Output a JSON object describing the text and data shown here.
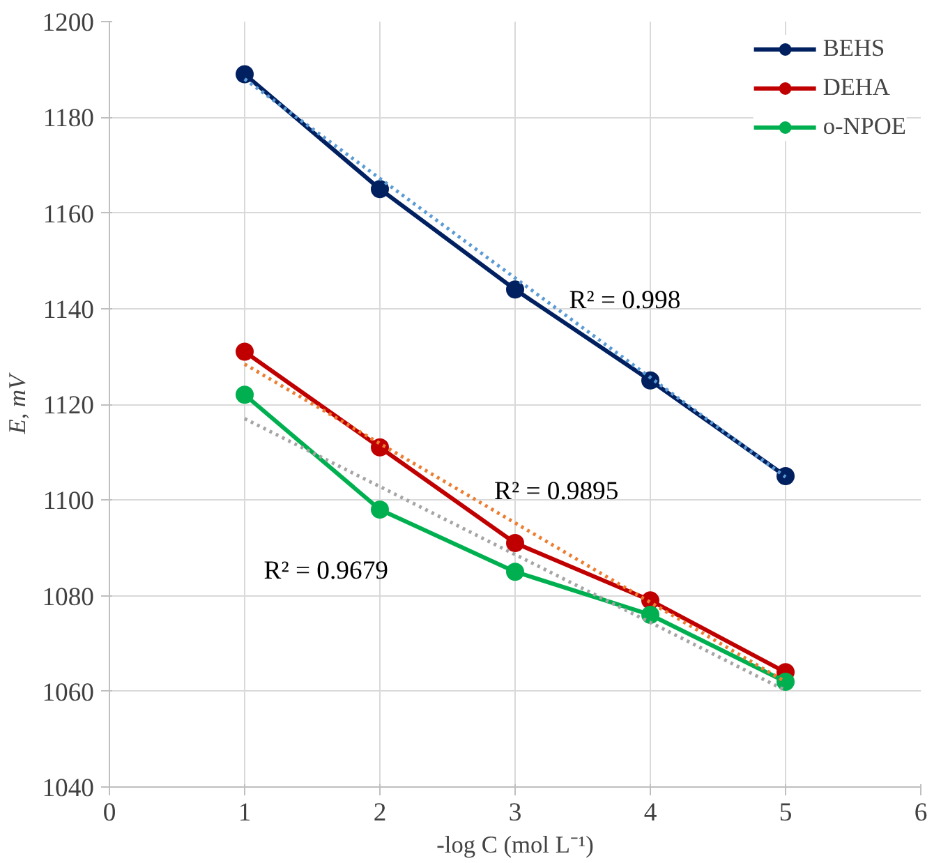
{
  "chart_data": {
    "type": "line",
    "xlabel": "-log C (mol L⁻¹)",
    "ylabel": "E, mV",
    "x": [
      1,
      2,
      3,
      4,
      5
    ],
    "series": [
      {
        "name": "BEHS",
        "color": "#002060",
        "values": [
          1189,
          1165,
          1144,
          1125,
          1105
        ]
      },
      {
        "name": "DEHA",
        "color": "#c00000",
        "values": [
          1131,
          1111,
          1091,
          1079,
          1064
        ]
      },
      {
        "name": "o-NPOE",
        "color": "#00b050",
        "values": [
          1122,
          1098,
          1085,
          1076,
          1062
        ]
      },
      {
        "type": "line",
        "color": "#5b9bd5",
        "values": [
          1188,
          1167.2,
          1146.4,
          1125.6,
          1104.8
        ],
        "marker": "none",
        "line_style": "dotted"
      },
      {
        "type": "line",
        "color": "#ed7d31",
        "values": [
          1128.4,
          1111.8,
          1095.2,
          1078.6,
          1062
        ],
        "marker": "none",
        "line_style": "dotted"
      },
      {
        "type": "line",
        "color": "#a5a5a5",
        "values": [
          1117,
          1102.8,
          1088.6,
          1074.4,
          1060.2
        ],
        "marker": "none",
        "line_style": "dotted"
      }
    ],
    "marker": "circle",
    "line_style": "solid",
    "xlim": [
      0,
      6
    ],
    "xticks": [
      0,
      1,
      2,
      3,
      4,
      5,
      6
    ],
    "ylim": [
      1040,
      1200
    ],
    "yticks": [
      1040,
      1060,
      1080,
      1100,
      1120,
      1140,
      1160,
      1180,
      1200
    ],
    "grid": true,
    "legend": "top right",
    "annotations": [
      "R² = 0.998",
      "R² = 0.9895",
      "R² = 0.9679"
    ]
  }
}
